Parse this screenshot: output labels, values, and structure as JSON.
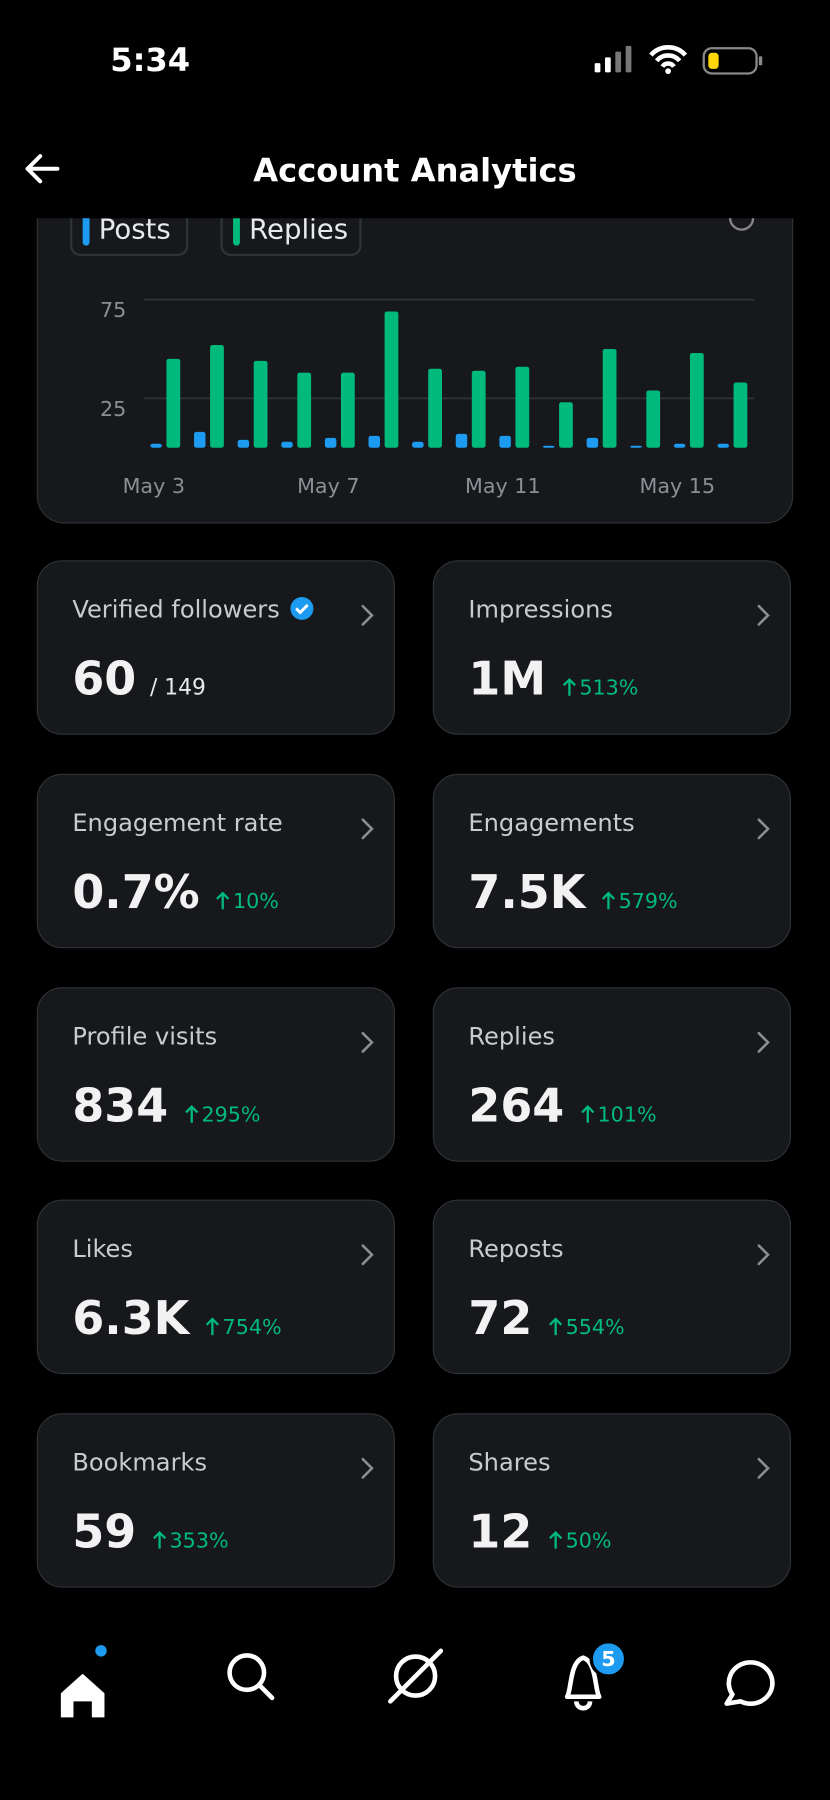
{
  "status_bar": {
    "time": "5:34"
  },
  "header": {
    "title": "Account Analytics"
  },
  "chart_data": {
    "type": "bar",
    "categories": [
      "May 3",
      null,
      null,
      null,
      "May 7",
      null,
      null,
      null,
      "May 11",
      null,
      null,
      null,
      "May 15",
      null
    ],
    "series": [
      {
        "name": "Posts",
        "color": "#1d9bf0",
        "values": [
          2,
          8,
          4,
          3,
          5,
          6,
          3,
          7,
          6,
          1,
          5,
          1,
          2,
          2
        ]
      },
      {
        "name": "Replies",
        "color": "#00ba7c",
        "values": [
          45,
          52,
          44,
          38,
          38,
          69,
          40,
          39,
          41,
          23,
          50,
          29,
          48,
          33
        ]
      }
    ],
    "ylim": [
      0,
      75
    ],
    "yticks": [
      25,
      75
    ],
    "grid": true
  },
  "metrics": [
    {
      "label": "Verified followers",
      "value": "60",
      "total": "/ 149"
    },
    {
      "label": "Impressions",
      "value": "1M",
      "change": "513%"
    },
    {
      "label": "Engagement rate",
      "value": "0.7%",
      "change": "10%"
    },
    {
      "label": "Engagements",
      "value": "7.5K",
      "change": "579%"
    },
    {
      "label": "Profile visits",
      "value": "834",
      "change": "295%"
    },
    {
      "label": "Replies",
      "value": "264",
      "change": "101%"
    },
    {
      "label": "Likes",
      "value": "6.3K",
      "change": "754%"
    },
    {
      "label": "Reposts",
      "value": "72",
      "change": "554%"
    },
    {
      "label": "Bookmarks",
      "value": "59",
      "change": "353%"
    },
    {
      "label": "Shares",
      "value": "12",
      "change": "50%"
    }
  ],
  "nav": {
    "notification_badge": "5"
  }
}
